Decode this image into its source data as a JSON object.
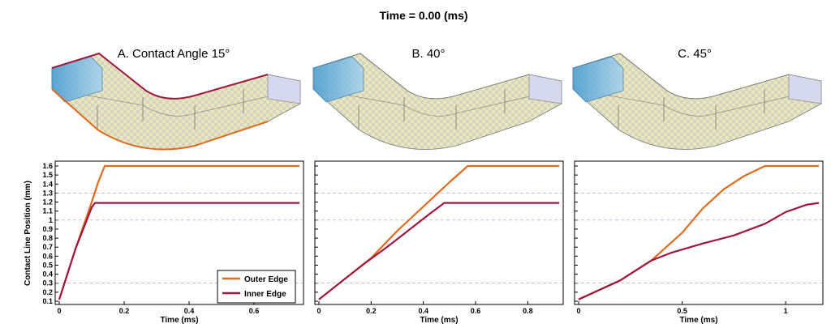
{
  "header": {
    "time_label": "Time = 0.00 (ms)"
  },
  "colors": {
    "outer": "#e06b1f",
    "inner": "#a0173f",
    "gridline": "#9a9ad8",
    "fluid": "#5aa7d6",
    "channel": "#e8e7b5"
  },
  "shared": {
    "ylabel": "Contact Line Position (mm)",
    "xlabel": "Time (ms)"
  },
  "legend": {
    "outer_label": "Outer Edge",
    "inner_label": "Inner Edge",
    "placement": "bottom-right of first panel"
  },
  "chart_data": [
    {
      "type": "line",
      "panel_title": "A. Contact Angle 15°",
      "xlabel": "Time (ms)",
      "ylabel": "Contact Line Position (mm)",
      "xlim": [
        0,
        0.74
      ],
      "ylim": [
        0.1,
        1.6
      ],
      "xticks": [
        "0",
        "0.2",
        "0.4",
        "0.6"
      ],
      "yticks": [
        "0.1",
        "0.2",
        "0.3",
        "0.4",
        "0.5",
        "0.6",
        "0.7",
        "0.8",
        "0.9",
        "1",
        "1.1",
        "1.2",
        "1.3",
        "1.4",
        "1.5",
        "1.6"
      ],
      "grid": true,
      "series": [
        {
          "name": "Outer Edge",
          "x": [
            0,
            0.05,
            0.1,
            0.12,
            0.14,
            0.2,
            0.74
          ],
          "y": [
            0.12,
            0.68,
            1.2,
            1.42,
            1.6,
            1.6,
            1.6
          ]
        },
        {
          "name": "Inner Edge",
          "x": [
            0,
            0.05,
            0.1,
            0.11,
            0.2,
            0.74
          ],
          "y": [
            0.12,
            0.68,
            1.14,
            1.19,
            1.19,
            1.19
          ]
        }
      ]
    },
    {
      "type": "line",
      "panel_title": "B. 40°",
      "xlabel": "Time (ms)",
      "xlim": [
        0,
        0.92
      ],
      "ylim": [
        0.1,
        1.6
      ],
      "xticks": [
        "0",
        "0.2",
        "0.4",
        "0.6",
        "0.8"
      ],
      "grid": true,
      "series": [
        {
          "name": "Outer Edge",
          "x": [
            0,
            0.1,
            0.2,
            0.3,
            0.4,
            0.5,
            0.57,
            0.92
          ],
          "y": [
            0.12,
            0.35,
            0.58,
            0.88,
            1.15,
            1.42,
            1.6,
            1.6
          ]
        },
        {
          "name": "Inner Edge",
          "x": [
            0,
            0.1,
            0.18,
            0.26,
            0.34,
            0.42,
            0.48,
            0.92
          ],
          "y": [
            0.12,
            0.35,
            0.53,
            0.7,
            0.88,
            1.06,
            1.19,
            1.19
          ]
        }
      ]
    },
    {
      "type": "line",
      "panel_title": "C. 45°",
      "xlabel": "Time (ms)",
      "xlim": [
        0,
        1.16
      ],
      "ylim": [
        0.1,
        1.6
      ],
      "xticks": [
        "0",
        "0.5",
        "1"
      ],
      "grid": true,
      "series": [
        {
          "name": "Outer Edge",
          "x": [
            0,
            0.2,
            0.35,
            0.5,
            0.6,
            0.7,
            0.8,
            0.9,
            1.16
          ],
          "y": [
            0.12,
            0.33,
            0.55,
            0.86,
            1.13,
            1.34,
            1.49,
            1.6,
            1.6
          ]
        },
        {
          "name": "Inner Edge",
          "x": [
            0,
            0.2,
            0.35,
            0.45,
            0.6,
            0.75,
            0.9,
            1.0,
            1.1,
            1.16
          ],
          "y": [
            0.12,
            0.33,
            0.55,
            0.64,
            0.74,
            0.83,
            0.96,
            1.09,
            1.17,
            1.19
          ]
        }
      ]
    }
  ]
}
